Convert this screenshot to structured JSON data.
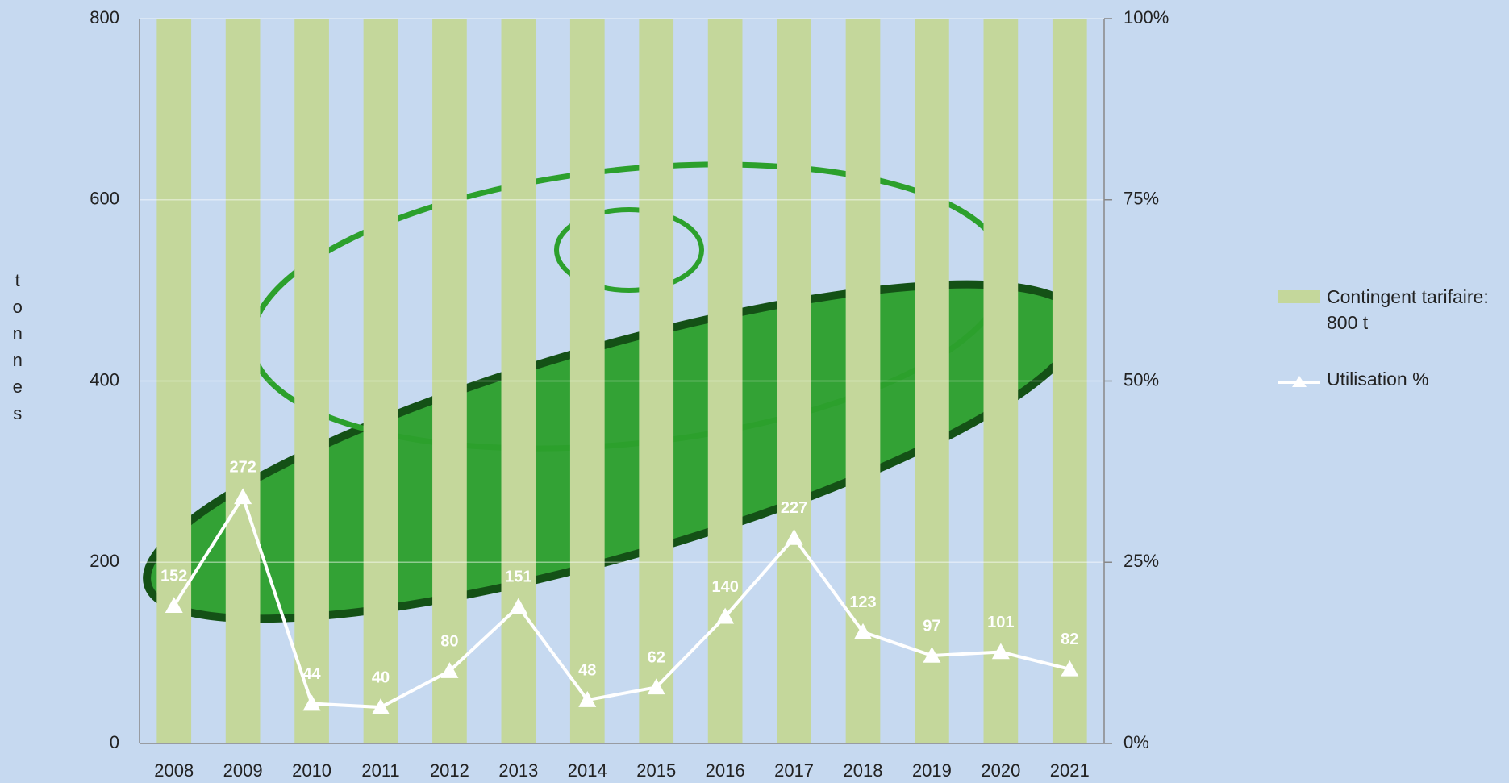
{
  "chart_data": {
    "type": "combo",
    "y_label": "tonnes",
    "categories": [
      "2008",
      "2009",
      "2010",
      "2011",
      "2012",
      "2013",
      "2014",
      "2015",
      "2016",
      "2017",
      "2018",
      "2019",
      "2020",
      "2021"
    ],
    "series": [
      {
        "name": "Contingent tarifaire: 800 t",
        "type": "bar",
        "color": "#c4d79b",
        "values": [
          800,
          800,
          800,
          800,
          800,
          800,
          800,
          800,
          800,
          800,
          800,
          800,
          800,
          800
        ]
      },
      {
        "name": "Utilisation %",
        "type": "line",
        "color": "#ffffff",
        "data_labels": true,
        "values": [
          152,
          272,
          44,
          40,
          80,
          151,
          48,
          62,
          140,
          227,
          123,
          97,
          101,
          82
        ]
      }
    ],
    "ylim": [
      0,
      800
    ],
    "yticks": [
      0,
      200,
      400,
      600,
      800
    ],
    "y2lim": [
      0,
      100
    ],
    "y2ticks": [
      {
        "value": 0,
        "label": "0%"
      },
      {
        "value": 25,
        "label": "25%"
      },
      {
        "value": 50,
        "label": "50%"
      },
      {
        "value": 75,
        "label": "75%"
      },
      {
        "value": 100,
        "label": "100%"
      }
    ],
    "grid": true,
    "legend": "right"
  }
}
